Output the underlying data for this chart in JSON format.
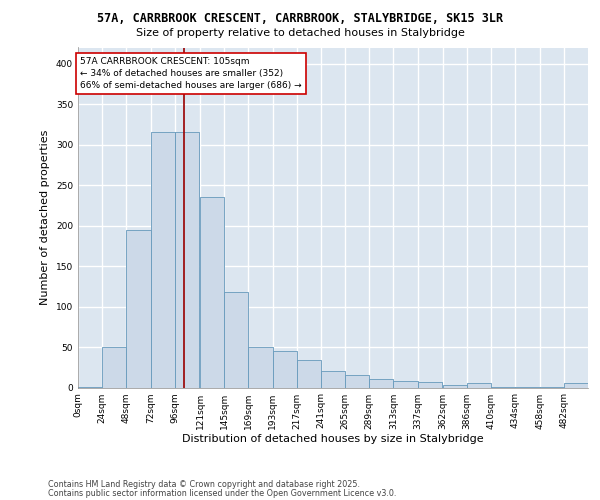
{
  "title1": "57A, CARRBROOK CRESCENT, CARRBROOK, STALYBRIDGE, SK15 3LR",
  "title2": "Size of property relative to detached houses in Stalybridge",
  "xlabel": "Distribution of detached houses by size in Stalybridge",
  "ylabel": "Number of detached properties",
  "bar_color": "#ccd9e8",
  "bar_edge_color": "#6699bb",
  "background_color": "#dce6f0",
  "grid_color": "#ffffff",
  "annotation_text": "57A CARRBROOK CRESCENT: 105sqm\n← 34% of detached houses are smaller (352)\n66% of semi-detached houses are larger (686) →",
  "property_line_x": 105,
  "categories": [
    "0sqm",
    "24sqm",
    "48sqm",
    "72sqm",
    "96sqm",
    "121sqm",
    "145sqm",
    "169sqm",
    "193sqm",
    "217sqm",
    "241sqm",
    "265sqm",
    "289sqm",
    "313sqm",
    "337sqm",
    "362sqm",
    "386sqm",
    "410sqm",
    "434sqm",
    "458sqm",
    "482sqm"
  ],
  "bin_edges": [
    0,
    24,
    48,
    72,
    96,
    121,
    145,
    169,
    193,
    217,
    241,
    265,
    289,
    313,
    337,
    362,
    386,
    410,
    434,
    458,
    482
  ],
  "bar_heights": [
    1,
    50,
    195,
    315,
    315,
    235,
    118,
    50,
    45,
    34,
    20,
    16,
    10,
    8,
    7,
    3,
    6,
    1,
    1,
    1,
    5
  ],
  "ylim": [
    0,
    420
  ],
  "yticks": [
    0,
    50,
    100,
    150,
    200,
    250,
    300,
    350,
    400
  ],
  "footnote1": "Contains HM Land Registry data © Crown copyright and database right 2025.",
  "footnote2": "Contains public sector information licensed under the Open Government Licence v3.0."
}
